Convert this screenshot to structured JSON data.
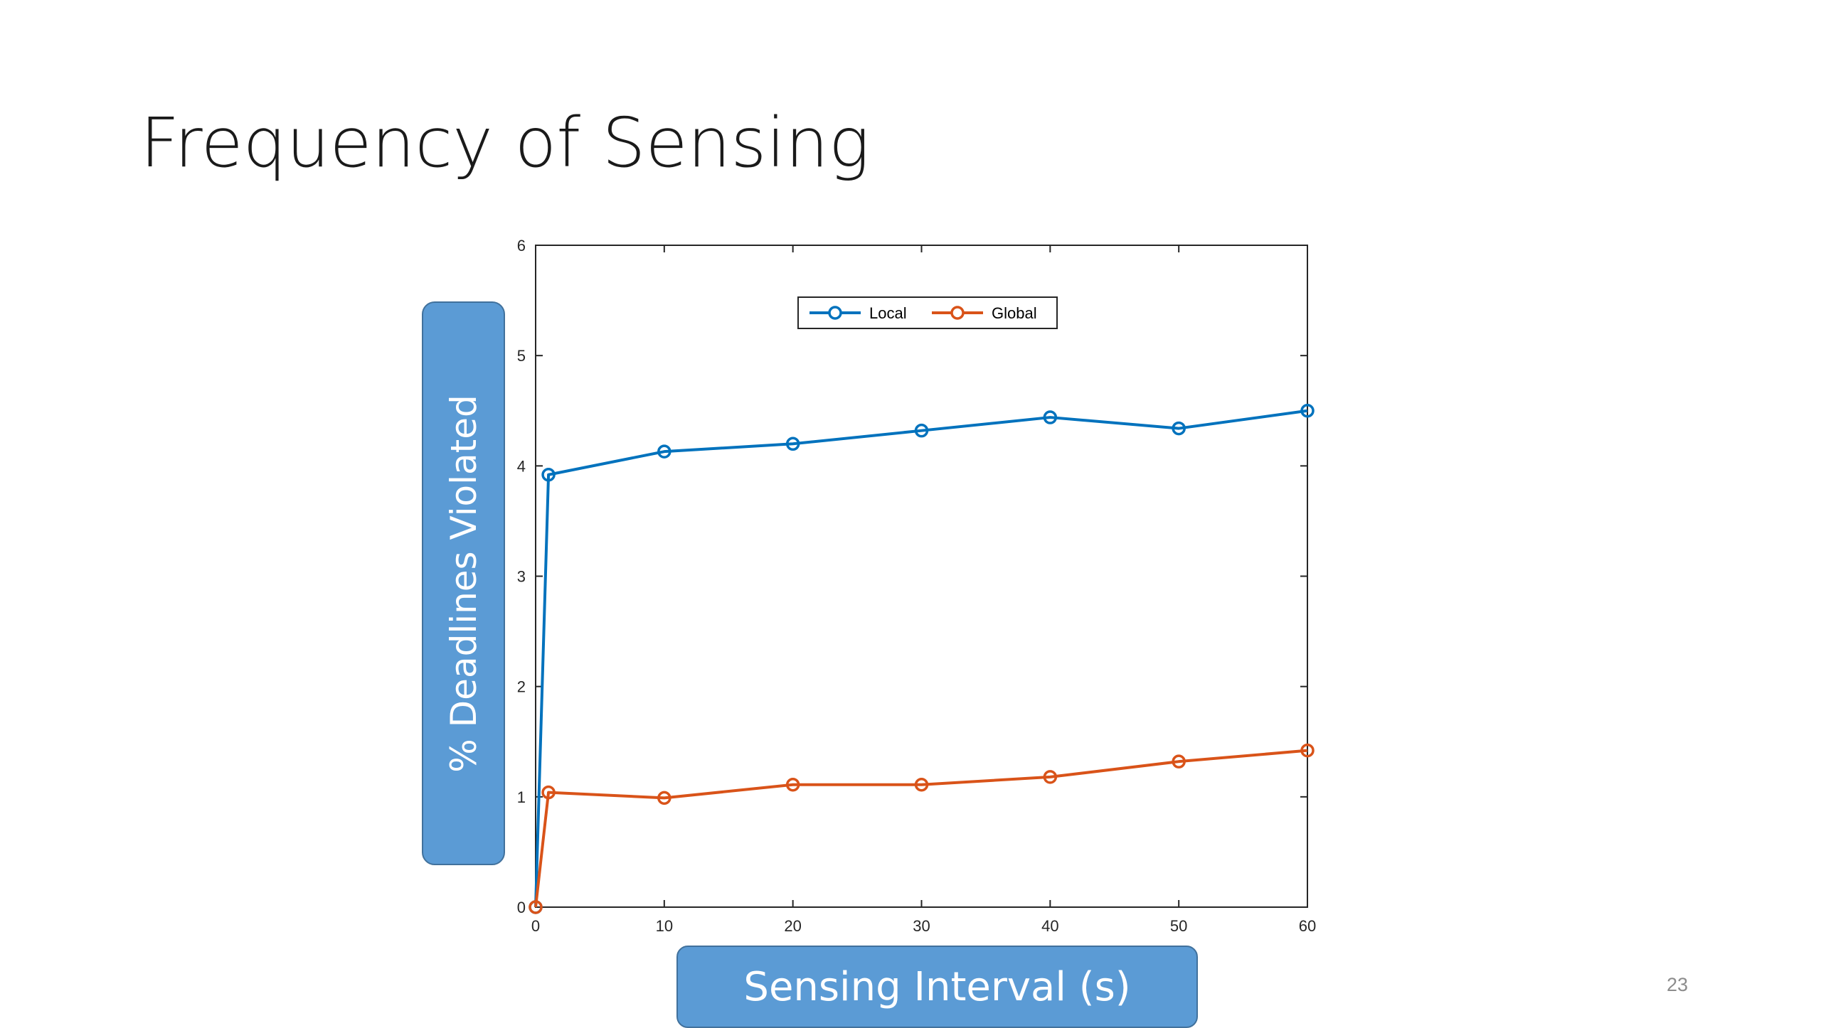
{
  "slide": {
    "title": "Frequency of Sensing",
    "page_number": "23"
  },
  "colors": {
    "local": "#0072bd",
    "global": "#d95319",
    "label_box": "#5b9bd5"
  },
  "chart_data": {
    "type": "line",
    "title": "",
    "xlabel": "Sensing Interval (s)",
    "ylabel": "% Deadlines Violated",
    "xlim": [
      0,
      60
    ],
    "ylim": [
      0,
      6
    ],
    "xticks": [
      0,
      10,
      20,
      30,
      40,
      50,
      60
    ],
    "yticks": [
      0,
      1,
      2,
      3,
      4,
      5,
      6
    ],
    "grid": false,
    "legend": "top-center",
    "series": [
      {
        "name": "Local",
        "color": "#0072bd",
        "marker": "circle",
        "x": [
          0,
          1,
          10,
          20,
          30,
          40,
          50,
          60
        ],
        "y": [
          0,
          3.92,
          4.13,
          4.2,
          4.32,
          4.44,
          4.34,
          4.5
        ]
      },
      {
        "name": "Global",
        "color": "#d95319",
        "marker": "circle",
        "x": [
          0,
          1,
          10,
          20,
          30,
          40,
          50,
          60
        ],
        "y": [
          0,
          1.04,
          0.99,
          1.11,
          1.11,
          1.18,
          1.32,
          1.42
        ]
      }
    ]
  }
}
